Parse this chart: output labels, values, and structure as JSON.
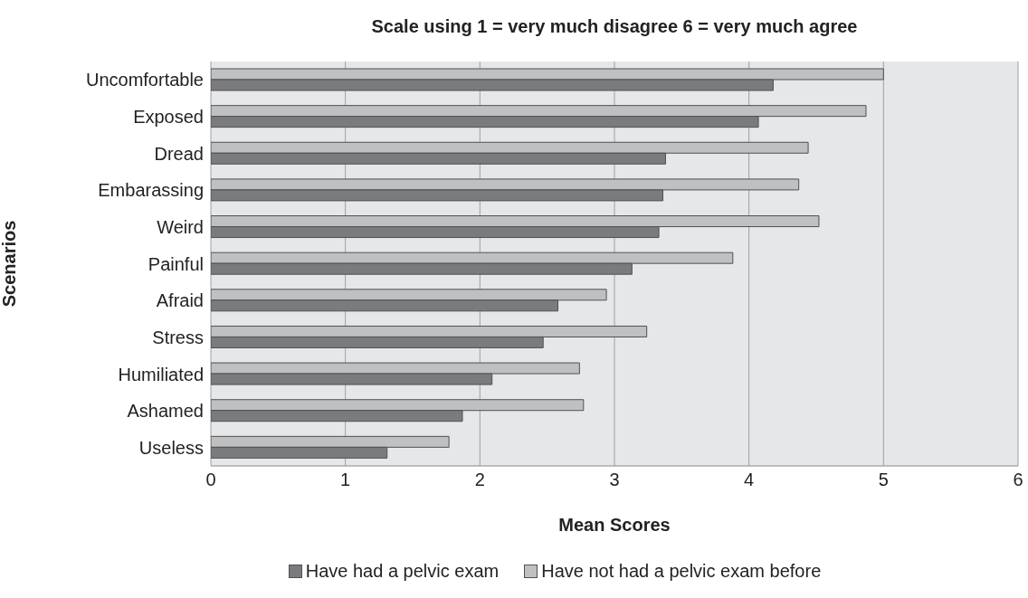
{
  "chart_data": {
    "type": "bar",
    "orientation": "horizontal",
    "title": "Scale using 1 = very much disagree 6 = very much agree",
    "xlabel": "Mean Scores",
    "ylabel": "Scenarios",
    "categories": [
      "Uncomfortable",
      "Exposed",
      "Dread",
      "Embarassing",
      "Weird",
      "Painful",
      "Afraid",
      "Stress",
      "Humiliated",
      "Ashamed",
      "Useless"
    ],
    "series": [
      {
        "name": "Have had a pelvic exam",
        "color": "#7a7b7f",
        "values": [
          4.18,
          4.07,
          3.38,
          3.36,
          3.33,
          3.13,
          2.58,
          2.47,
          2.09,
          1.87,
          1.31
        ]
      },
      {
        "name": "Have not had a pelvic exam before",
        "color": "#bfc0c2",
        "values": [
          5.0,
          4.87,
          4.44,
          4.37,
          4.52,
          3.88,
          2.94,
          3.24,
          2.74,
          2.77,
          1.77
        ]
      }
    ],
    "xlim": [
      0,
      6
    ],
    "xticks": [
      0,
      1,
      2,
      3,
      4,
      5,
      6
    ],
    "grid": "x",
    "legend": "bottom"
  }
}
